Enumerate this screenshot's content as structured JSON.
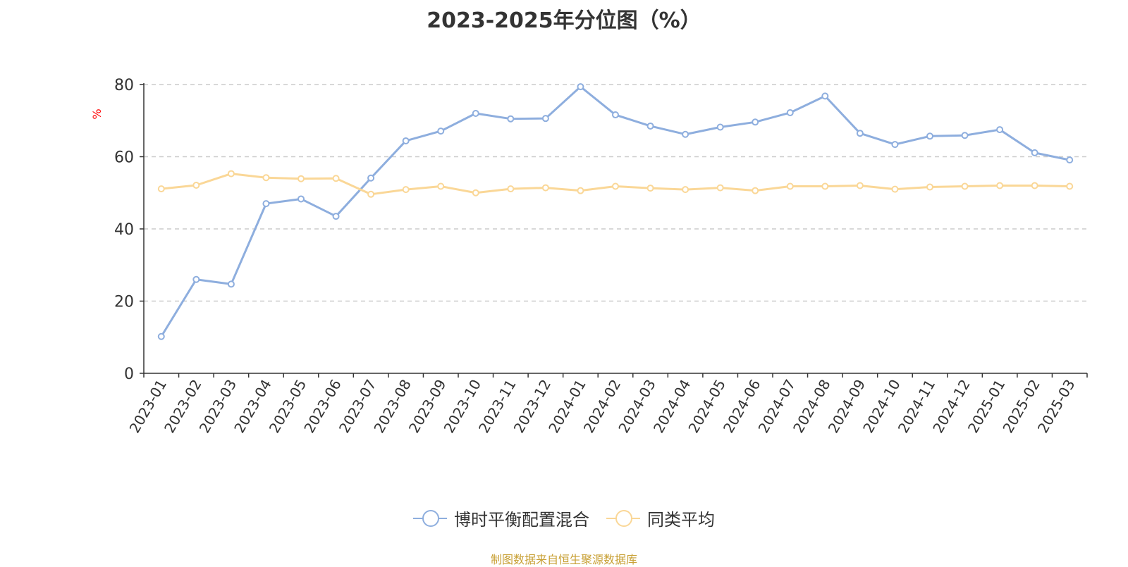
{
  "chart_data": {
    "type": "line",
    "title": "2023-2025年分位图（%）",
    "ylabel": "%",
    "xlabel": "",
    "ylim": [
      0,
      80
    ],
    "yticks": [
      0,
      20,
      40,
      60,
      80
    ],
    "grid": true,
    "legend_position": "bottom",
    "categories": [
      "2023-01",
      "2023-02",
      "2023-03",
      "2023-04",
      "2023-05",
      "2023-06",
      "2023-07",
      "2023-08",
      "2023-09",
      "2023-10",
      "2023-11",
      "2023-12",
      "2024-01",
      "2024-02",
      "2024-03",
      "2024-04",
      "2024-05",
      "2024-06",
      "2024-07",
      "2024-08",
      "2024-09",
      "2024-10",
      "2024-11",
      "2024-12",
      "2025-01",
      "2025-02",
      "2025-03"
    ],
    "series": [
      {
        "name": "博时平衡配置混合",
        "color": "#8eaede",
        "values": [
          10.2,
          26.0,
          24.7,
          47.0,
          48.3,
          43.5,
          54.1,
          64.4,
          67.1,
          72.0,
          70.5,
          70.6,
          79.4,
          71.6,
          68.5,
          66.2,
          68.2,
          69.6,
          72.2,
          76.8,
          66.5,
          63.4,
          65.7,
          65.9,
          67.5,
          61.1,
          59.1
        ]
      },
      {
        "name": "同类平均",
        "color": "#fad797",
        "values": [
          51.1,
          52.1,
          55.3,
          54.2,
          53.9,
          54.0,
          49.6,
          50.9,
          51.8,
          50.0,
          51.1,
          51.4,
          50.6,
          51.8,
          51.3,
          50.9,
          51.4,
          50.6,
          51.8,
          51.8,
          52.0,
          51.0,
          51.6,
          51.8,
          52.0,
          52.0,
          51.8
        ]
      }
    ]
  },
  "footer": {
    "source": "制图数据来自恒生聚源数据库"
  },
  "colors": {
    "axis": "#333333",
    "grid": "#cccccc",
    "ylabel": "#ff0000",
    "source": "#c8a035"
  }
}
